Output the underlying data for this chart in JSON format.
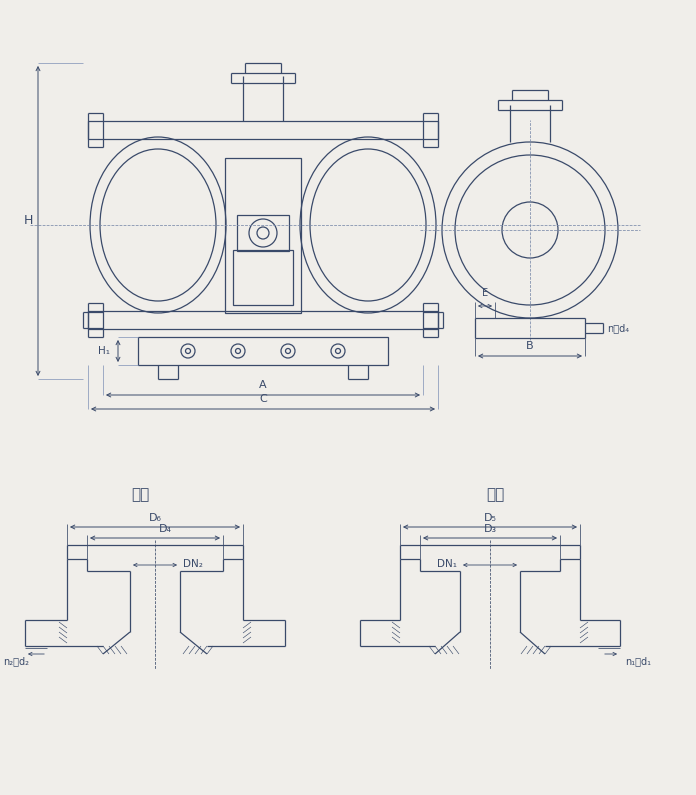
{
  "bg_color": "#f0eeea",
  "line_color": "#3a4a6a",
  "lw": 0.9,
  "tlw": 0.55,
  "title_outlet": "出口",
  "title_inlet": "进口",
  "labels": {
    "H": "H",
    "H1": "H₁",
    "A": "A",
    "B": "B",
    "C": "C",
    "E": "E",
    "n_d4": "n－d₄",
    "D6": "D₆",
    "D4": "D₄",
    "DN2": "DN₂",
    "n2_d2": "n₂－d₂",
    "D5": "D₅",
    "D3": "D₃",
    "DN1": "DN₁",
    "n1_d1": "n₁－d₁"
  }
}
